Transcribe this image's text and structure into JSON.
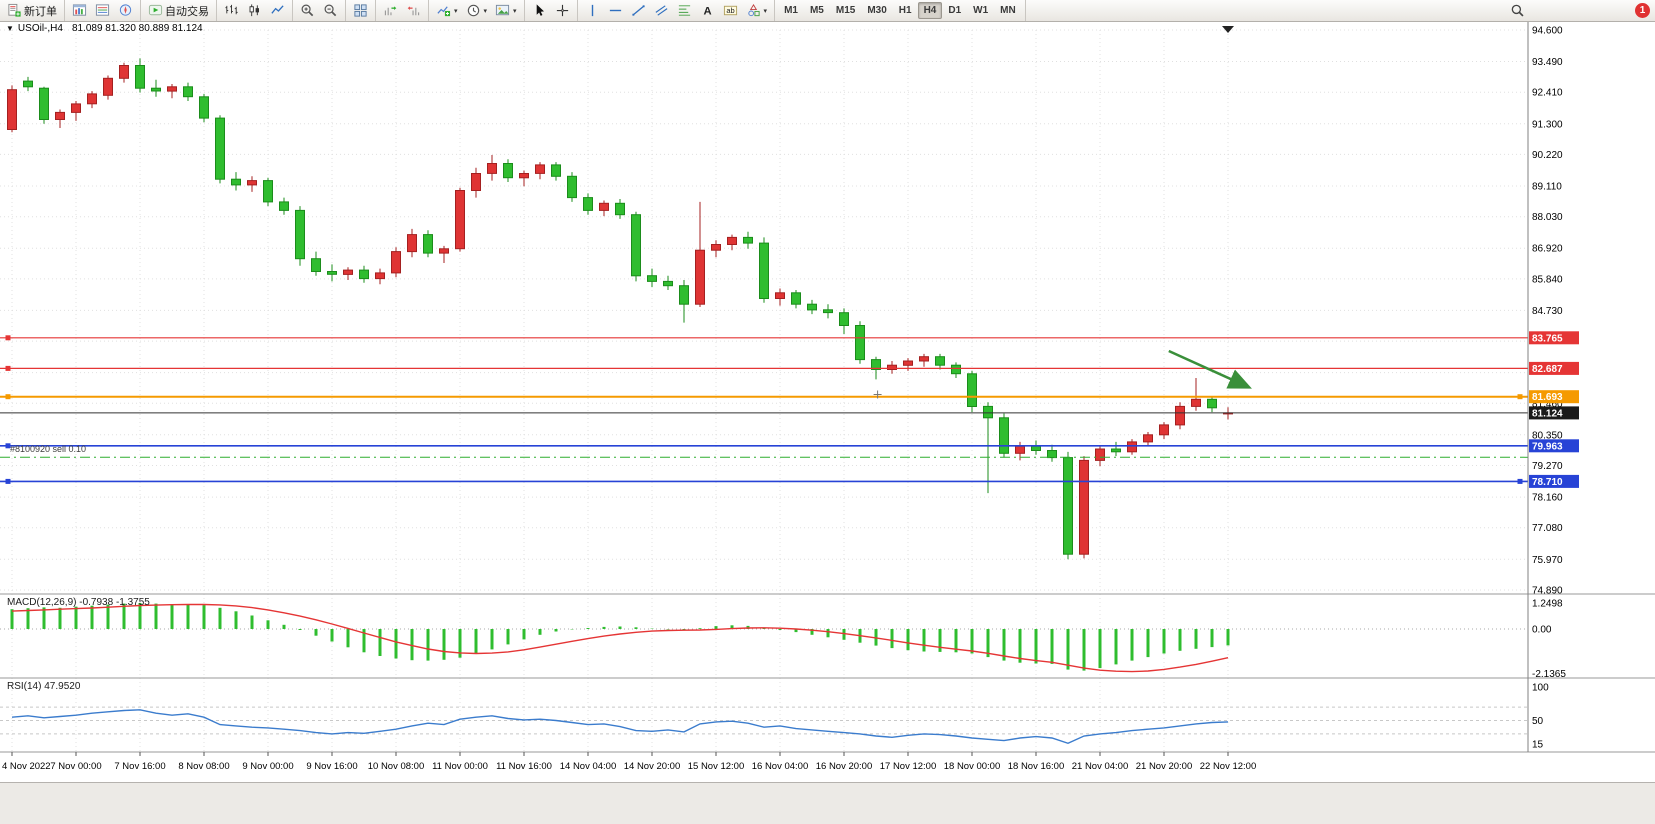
{
  "toolbar": {
    "groups": [
      {
        "items": [
          {
            "name": "new-order-button",
            "icon": "new-order",
            "label": "新订单"
          }
        ]
      },
      {
        "items": [
          {
            "name": "charts-button",
            "icon": "chart-window"
          },
          {
            "name": "market-watch-button",
            "icon": "market-watch"
          },
          {
            "name": "navigator-button",
            "icon": "navigator"
          }
        ]
      },
      {
        "items": [
          {
            "name": "autotrading-button",
            "icon": "autotrade",
            "label": "自动交易"
          }
        ]
      },
      {
        "items": [
          {
            "name": "bar-chart-mode-button",
            "icon": "bars-chart"
          },
          {
            "name": "candle-chart-mode-button",
            "icon": "candle-chart"
          },
          {
            "name": "line-chart-mode-button",
            "icon": "line-chart"
          }
        ]
      },
      {
        "items": [
          {
            "name": "zoom-in-button",
            "icon": "zoom-in"
          },
          {
            "name": "zoom-out-button",
            "icon": "zoom-out"
          }
        ]
      },
      {
        "items": [
          {
            "name": "tile-windows-button",
            "icon": "tile-windows"
          }
        ]
      },
      {
        "items": [
          {
            "name": "auto-scroll-button",
            "icon": "auto-scroll"
          },
          {
            "name": "chart-shift-button",
            "icon": "chart-shift"
          }
        ]
      },
      {
        "items": [
          {
            "name": "indicators-button",
            "icon": "indicators",
            "caret": true
          },
          {
            "name": "periods-button",
            "icon": "periods",
            "caret": true
          },
          {
            "name": "templates-button",
            "icon": "templates",
            "caret": true
          }
        ]
      },
      {
        "items": [
          {
            "name": "cursor-button",
            "icon": "cursor"
          },
          {
            "name": "crosshair-button",
            "icon": "crosshair"
          }
        ]
      },
      {
        "items": [
          {
            "name": "vertical-line-button",
            "icon": "vline"
          },
          {
            "name": "horizontal-line-button",
            "icon": "hline"
          },
          {
            "name": "trendline-button",
            "icon": "trendline"
          },
          {
            "name": "channel-button",
            "icon": "channel"
          },
          {
            "name": "fibonacci-button",
            "icon": "fibo"
          },
          {
            "name": "text-button",
            "icon": "text"
          },
          {
            "name": "label-button",
            "icon": "label"
          },
          {
            "name": "shapes-button",
            "icon": "shapes",
            "caret": true
          }
        ]
      }
    ],
    "timeframes": [
      {
        "label": "M1"
      },
      {
        "label": "M5"
      },
      {
        "label": "M15"
      },
      {
        "label": "M30"
      },
      {
        "label": "H1"
      },
      {
        "label": "H4",
        "active": true
      },
      {
        "label": "D1"
      },
      {
        "label": "W1"
      },
      {
        "label": "MN"
      }
    ],
    "notification_count": "1"
  },
  "chart": {
    "title_symbol": "USOil-,H4",
    "title_ohlc": "81.089 81.320 80.889 81.124",
    "position_label": "#8100920 sell 0.10"
  },
  "chart_data": {
    "type": "candlestick",
    "symbol": "USOil",
    "timeframe": "H4",
    "dates": [
      "4 Nov 2022",
      "7 Nov 00:00",
      "7 Nov 16:00",
      "8 Nov 08:00",
      "9 Nov 00:00",
      "9 Nov 16:00",
      "10 Nov 08:00",
      "11 Nov 00:00",
      "11 Nov 16:00",
      "14 Nov 04:00",
      "14 Nov 20:00",
      "15 Nov 12:00",
      "16 Nov 04:00",
      "16 Nov 20:00",
      "17 Nov 12:00",
      "18 Nov 00:00",
      "18 Nov 16:00",
      "21 Nov 04:00",
      "21 Nov 20:00",
      "22 Nov 12:00"
    ],
    "candles": [
      [
        91.1,
        92.65,
        91.0,
        92.5
      ],
      [
        92.8,
        92.95,
        92.45,
        92.6
      ],
      [
        92.55,
        92.6,
        91.3,
        91.45
      ],
      [
        91.45,
        91.8,
        91.15,
        91.7
      ],
      [
        91.7,
        92.1,
        91.4,
        92.0
      ],
      [
        92.0,
        92.45,
        91.85,
        92.35
      ],
      [
        92.3,
        93.0,
        92.15,
        92.9
      ],
      [
        92.9,
        93.45,
        92.75,
        93.35
      ],
      [
        93.35,
        93.6,
        92.4,
        92.55
      ],
      [
        92.55,
        92.85,
        92.25,
        92.45
      ],
      [
        92.45,
        92.7,
        92.2,
        92.6
      ],
      [
        92.6,
        92.75,
        92.1,
        92.25
      ],
      [
        92.25,
        92.35,
        91.35,
        91.5
      ],
      [
        91.5,
        91.6,
        89.2,
        89.35
      ],
      [
        89.35,
        89.6,
        88.95,
        89.15
      ],
      [
        89.15,
        89.45,
        88.9,
        89.3
      ],
      [
        89.3,
        89.4,
        88.4,
        88.55
      ],
      [
        88.55,
        88.7,
        88.1,
        88.25
      ],
      [
        88.25,
        88.4,
        86.3,
        86.55
      ],
      [
        86.55,
        86.8,
        85.95,
        86.1
      ],
      [
        86.1,
        86.35,
        85.75,
        86.0
      ],
      [
        86.0,
        86.25,
        85.8,
        86.15
      ],
      [
        86.15,
        86.3,
        85.7,
        85.85
      ],
      [
        85.85,
        86.2,
        85.65,
        86.05
      ],
      [
        86.05,
        86.95,
        85.9,
        86.8
      ],
      [
        86.8,
        87.6,
        86.6,
        87.4
      ],
      [
        87.4,
        87.55,
        86.6,
        86.75
      ],
      [
        86.75,
        87.0,
        86.4,
        86.9
      ],
      [
        86.9,
        89.05,
        86.8,
        88.95
      ],
      [
        88.95,
        89.75,
        88.7,
        89.55
      ],
      [
        89.55,
        90.2,
        89.3,
        89.9
      ],
      [
        89.9,
        90.05,
        89.25,
        89.4
      ],
      [
        89.4,
        89.65,
        89.1,
        89.55
      ],
      [
        89.55,
        89.95,
        89.35,
        89.85
      ],
      [
        89.85,
        89.95,
        89.3,
        89.45
      ],
      [
        89.45,
        89.6,
        88.55,
        88.7
      ],
      [
        88.7,
        88.85,
        88.1,
        88.25
      ],
      [
        88.25,
        88.6,
        88.05,
        88.5
      ],
      [
        88.5,
        88.65,
        87.95,
        88.1
      ],
      [
        88.1,
        88.2,
        85.75,
        85.95
      ],
      [
        85.95,
        86.2,
        85.55,
        85.75
      ],
      [
        85.75,
        85.95,
        85.45,
        85.6
      ],
      [
        85.6,
        85.8,
        84.3,
        84.95
      ],
      [
        84.95,
        88.55,
        84.85,
        86.85
      ],
      [
        86.85,
        87.2,
        86.6,
        87.05
      ],
      [
        87.05,
        87.4,
        86.85,
        87.3
      ],
      [
        87.3,
        87.5,
        86.9,
        87.1
      ],
      [
        87.1,
        87.3,
        85.0,
        85.15
      ],
      [
        85.15,
        85.5,
        84.9,
        85.35
      ],
      [
        85.35,
        85.45,
        84.8,
        84.95
      ],
      [
        84.95,
        85.1,
        84.6,
        84.75
      ],
      [
        84.75,
        84.95,
        84.45,
        84.65
      ],
      [
        84.65,
        84.8,
        83.9,
        84.2
      ],
      [
        84.2,
        84.35,
        82.85,
        83.0
      ],
      [
        83.0,
        83.1,
        82.3,
        82.65
      ],
      [
        82.65,
        82.95,
        82.5,
        82.8
      ],
      [
        82.8,
        83.05,
        82.6,
        82.95
      ],
      [
        82.95,
        83.2,
        82.75,
        83.1
      ],
      [
        83.1,
        83.2,
        82.65,
        82.8
      ],
      [
        82.8,
        82.9,
        82.35,
        82.5
      ],
      [
        82.5,
        82.6,
        81.15,
        81.35
      ],
      [
        81.35,
        81.5,
        78.3,
        80.95
      ],
      [
        80.95,
        81.1,
        79.55,
        79.7
      ],
      [
        79.7,
        80.1,
        79.45,
        79.95
      ],
      [
        79.95,
        80.15,
        79.65,
        79.8
      ],
      [
        79.8,
        80.0,
        79.4,
        79.55
      ],
      [
        79.55,
        79.75,
        75.97,
        76.15
      ],
      [
        76.15,
        79.6,
        76.0,
        79.45
      ],
      [
        79.45,
        79.95,
        79.25,
        79.85
      ],
      [
        79.85,
        80.1,
        79.6,
        79.75
      ],
      [
        79.75,
        80.2,
        79.65,
        80.1
      ],
      [
        80.1,
        80.45,
        79.95,
        80.35
      ],
      [
        80.35,
        80.8,
        80.2,
        80.7
      ],
      [
        80.7,
        81.5,
        80.55,
        81.35
      ],
      [
        81.35,
        82.35,
        81.2,
        81.6
      ],
      [
        81.6,
        81.7,
        81.15,
        81.3
      ],
      [
        81.089,
        81.32,
        80.889,
        81.124
      ]
    ],
    "price_axis_ticks": [
      "94.600",
      "93.490",
      "92.410",
      "91.300",
      "90.220",
      "89.110",
      "88.030",
      "86.920",
      "85.840",
      "84.730",
      "81.460",
      "80.350",
      "79.270",
      "78.160",
      "77.080",
      "75.970",
      "74.890"
    ],
    "price_axis_hidden_grid": [
      "83.650",
      "82.540"
    ],
    "levels": [
      {
        "price": 83.765,
        "badge": "83.765",
        "color_key": "line_red",
        "badge_color_key": "badge_red",
        "width": 1.2,
        "handles": [
          "left"
        ]
      },
      {
        "price": 82.687,
        "badge": "82.687",
        "color_key": "line_red",
        "badge_color_key": "badge_red",
        "width": 1.2,
        "handles": [
          "left"
        ]
      },
      {
        "price": 81.693,
        "badge": "81.693",
        "color_key": "line_orange",
        "badge_color_key": "badge_orange",
        "width": 2,
        "handles": [
          "left",
          "right"
        ]
      },
      {
        "price": 79.963,
        "badge": "79.963",
        "color_key": "line_blue",
        "badge_color_key": "badge_blue",
        "width": 1.6,
        "handles": [
          "left"
        ]
      },
      {
        "price": 78.71,
        "badge": "78.710",
        "color_key": "line_blue",
        "badge_color_key": "badge_blue",
        "width": 1.6,
        "handles": [
          "left",
          "right"
        ]
      }
    ],
    "current_price": {
      "price": 81.124,
      "badge": "81.124"
    },
    "position_line": {
      "price": 79.56
    },
    "arrow_annotation": {
      "from_bar": 72.3,
      "from_price": 83.3,
      "to_bar": 77.2,
      "to_price": 82.05
    },
    "cross_marker": {
      "bar": 54.1,
      "price": 81.77
    },
    "macd": {
      "label_text": "MACD(12,26,9) -0.7938 -1.3755",
      "axis_labels": [
        "1.2498",
        "0.00",
        "-2.1365"
      ],
      "histogram": [
        0.95,
        1.0,
        1.04,
        1.02,
        1.07,
        1.12,
        1.17,
        1.22,
        1.25,
        1.22,
        1.18,
        1.2,
        1.15,
        1.02,
        0.85,
        0.65,
        0.42,
        0.2,
        -0.05,
        -0.32,
        -0.6,
        -0.88,
        -1.12,
        -1.3,
        -1.42,
        -1.5,
        -1.52,
        -1.48,
        -1.38,
        -1.2,
        -0.98,
        -0.74,
        -0.5,
        -0.28,
        -0.12,
        -0.02,
        0.05,
        0.1,
        0.12,
        0.08,
        0.02,
        -0.02,
        -0.06,
        0.04,
        0.14,
        0.18,
        0.15,
        0.05,
        -0.05,
        -0.15,
        -0.28,
        -0.4,
        -0.52,
        -0.66,
        -0.8,
        -0.92,
        -1.02,
        -1.08,
        -1.1,
        -1.12,
        -1.18,
        -1.35,
        -1.52,
        -1.62,
        -1.66,
        -1.68,
        -1.95,
        -2.0,
        -1.88,
        -1.7,
        -1.52,
        -1.35,
        -1.18,
        -1.05,
        -0.95,
        -0.87,
        -0.79
      ],
      "signal": [
        0.86,
        0.89,
        0.92,
        0.95,
        0.98,
        1.01,
        1.05,
        1.09,
        1.13,
        1.15,
        1.17,
        1.18,
        1.18,
        1.16,
        1.11,
        1.03,
        0.92,
        0.78,
        0.62,
        0.44,
        0.24,
        0.03,
        -0.19,
        -0.41,
        -0.62,
        -0.8,
        -0.96,
        -1.08,
        -1.15,
        -1.18,
        -1.16,
        -1.1,
        -1.0,
        -0.87,
        -0.73,
        -0.59,
        -0.46,
        -0.34,
        -0.24,
        -0.16,
        -0.1,
        -0.07,
        -0.06,
        -0.05,
        -0.02,
        0.02,
        0.05,
        0.06,
        0.04,
        0.0,
        -0.06,
        -0.13,
        -0.22,
        -0.32,
        -0.43,
        -0.55,
        -0.67,
        -0.78,
        -0.88,
        -0.97,
        -1.06,
        -1.17,
        -1.3,
        -1.42,
        -1.52,
        -1.6,
        -1.74,
        -1.88,
        -1.98,
        -2.03,
        -2.05,
        -2.02,
        -1.94,
        -1.83,
        -1.7,
        -1.55,
        -1.38
      ]
    },
    "rsi": {
      "label_text": "RSI(14) 47.9520",
      "axis_labels": [
        "100",
        "50",
        "15"
      ],
      "levels": [
        70,
        50,
        30
      ],
      "values": [
        55,
        57,
        54,
        56,
        58,
        61,
        63,
        65,
        66,
        61,
        58,
        60,
        55,
        44,
        42,
        40,
        39,
        37,
        35,
        32,
        30,
        32,
        31,
        34,
        37,
        42,
        46,
        44,
        52,
        55,
        57,
        53,
        51,
        52,
        50,
        47,
        44,
        45,
        41,
        35,
        34,
        36,
        33,
        45,
        48,
        49,
        46,
        40,
        42,
        38,
        36,
        34,
        32,
        30,
        27,
        25,
        28,
        30,
        29,
        27,
        24,
        22,
        20,
        24,
        26,
        24,
        16,
        27,
        30,
        32,
        35,
        37,
        39,
        42,
        45,
        47,
        48
      ]
    },
    "colors": {
      "candle_up": "#df3434",
      "candle_up_stroke": "#a42020",
      "candle_down": "#2fbd2f",
      "candle_down_stroke": "#1b8c1b",
      "line_red": "#e53535",
      "line_orange": "#f59a00",
      "line_blue": "#2743d6",
      "current_price_line": "#333333",
      "sell_line": "#2fae2f",
      "macd_hist": "#2fbd2f",
      "macd_signal": "#e53535",
      "rsi_line": "#3b7ccd",
      "arrow_green": "#3a8f3a",
      "badge_red": "#e53535",
      "badge_orange": "#f59a00",
      "badge_blue": "#2743d6",
      "badge_black": "#1a1a1a"
    }
  }
}
